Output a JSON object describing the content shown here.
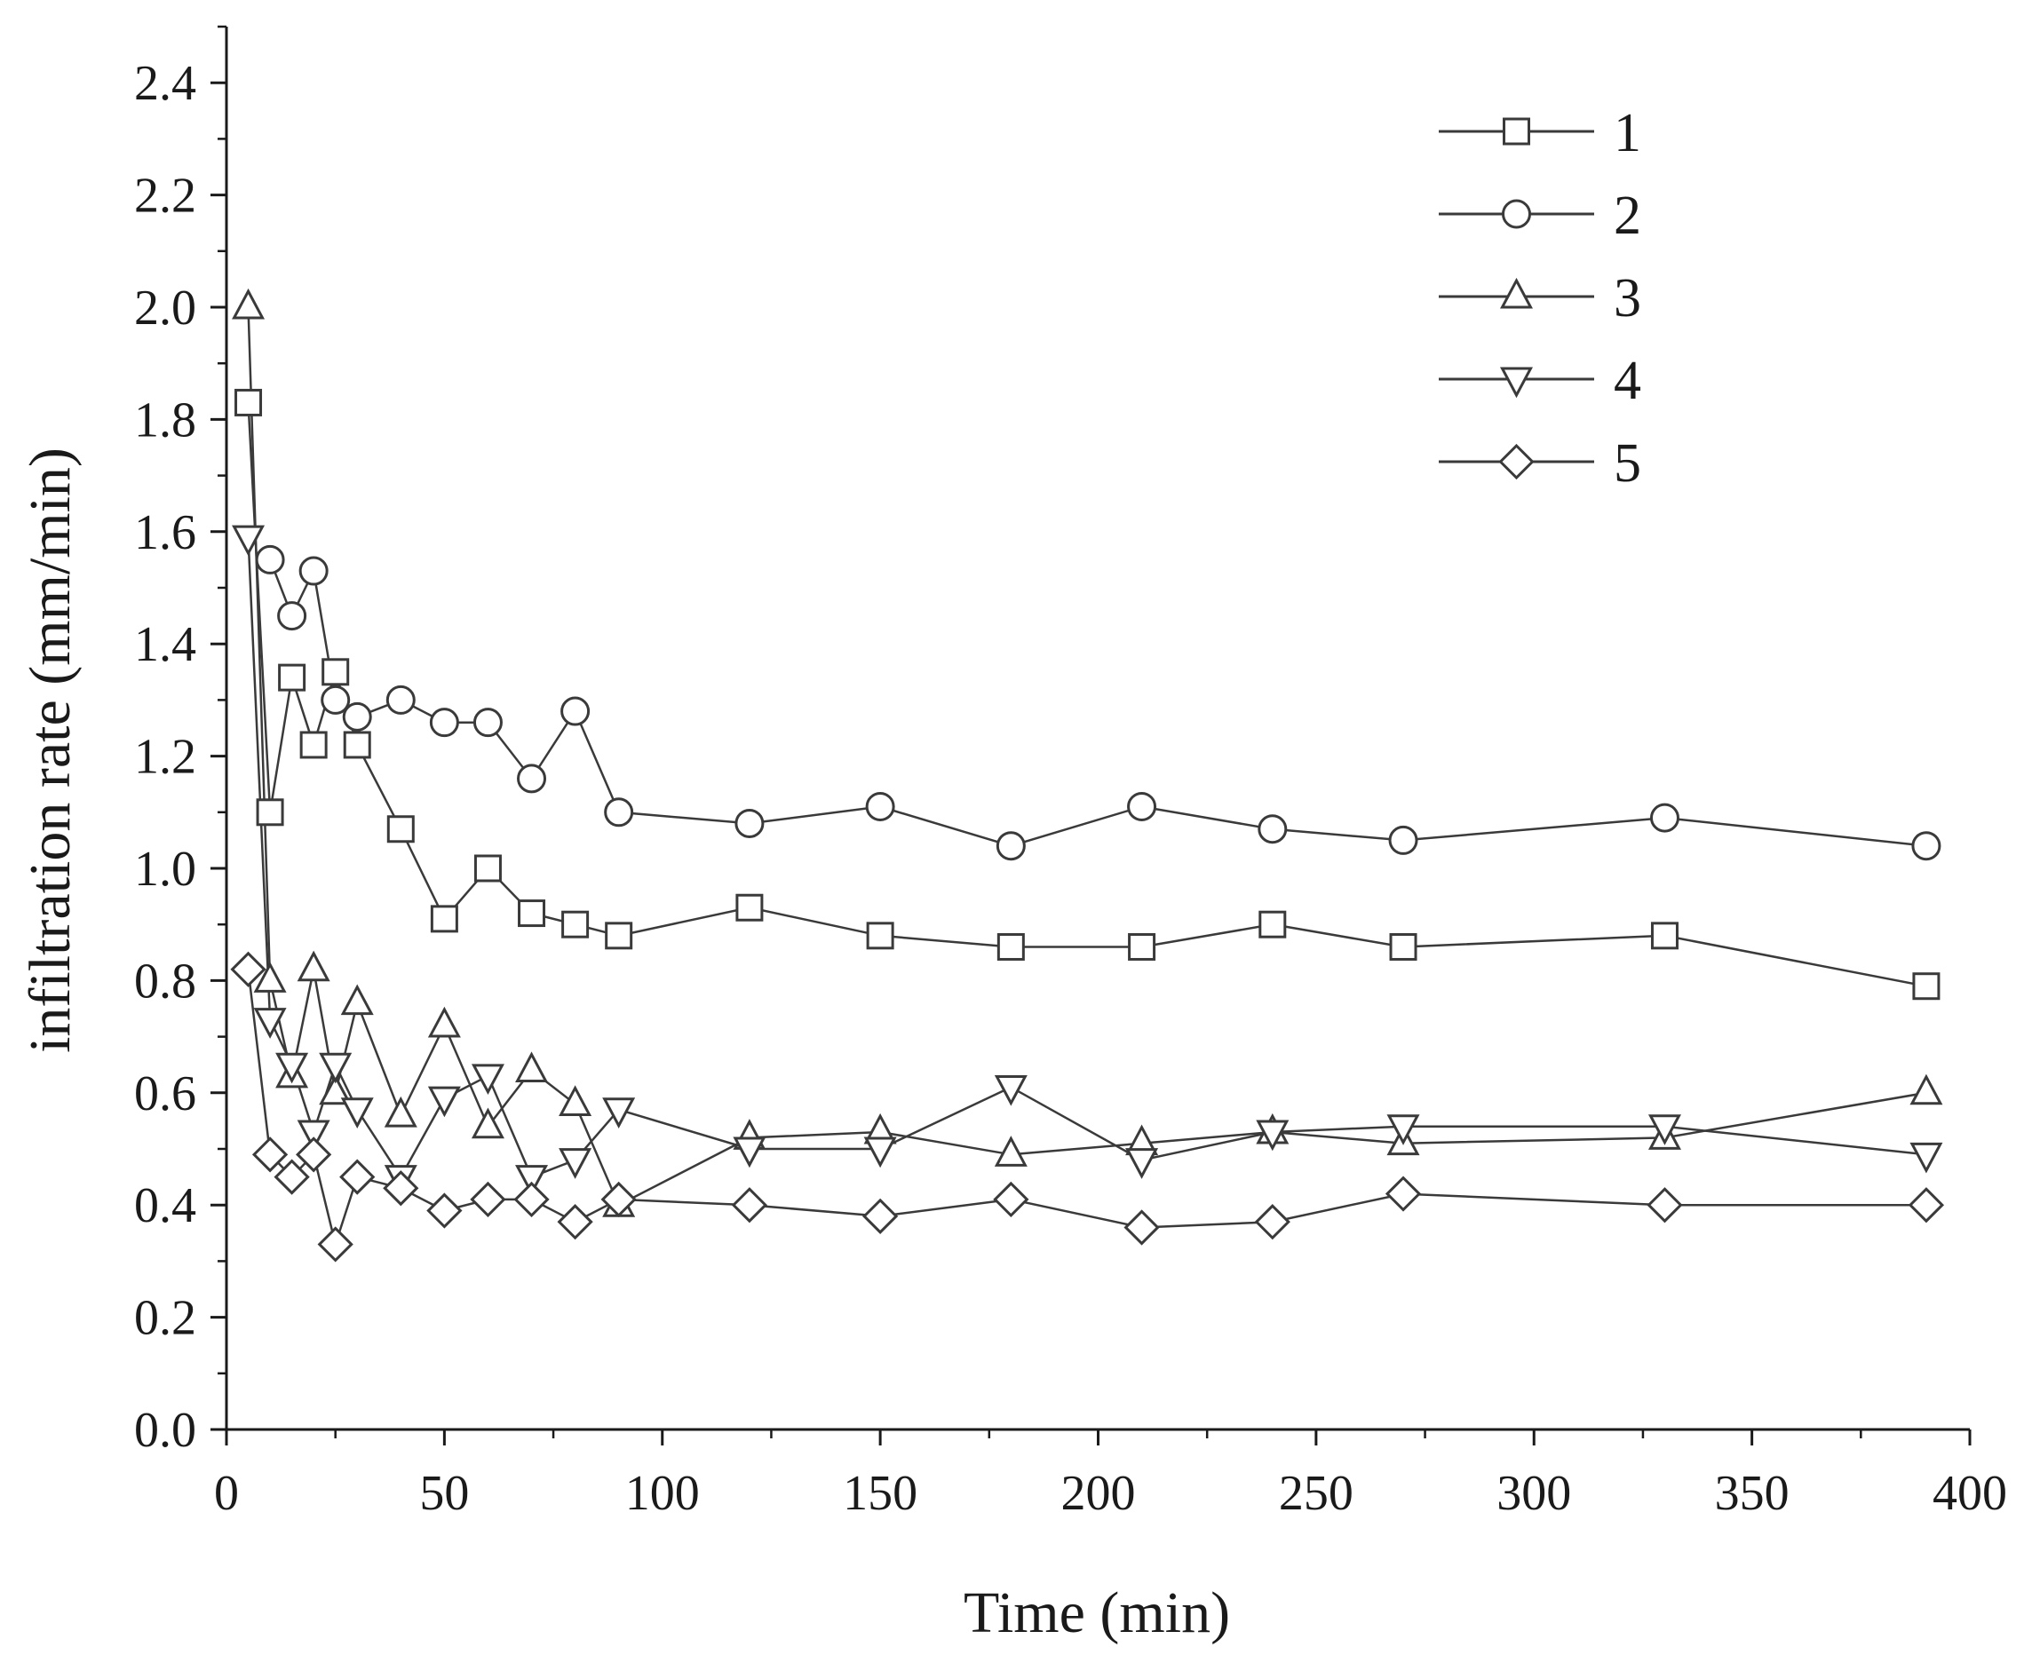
{
  "chart_data": {
    "type": "line",
    "title": "",
    "xlabel": "Time (min)",
    "ylabel": "infiltration rate (mm/min)",
    "xlim": [
      0,
      400
    ],
    "ylim": [
      0,
      2.5
    ],
    "xticks": [
      0,
      50,
      100,
      150,
      200,
      250,
      300,
      350,
      400
    ],
    "xtick_labels": [
      "0",
      "50",
      "100",
      "150",
      "200",
      "250",
      "300",
      "350",
      "400"
    ],
    "yticks": [
      0.0,
      0.2,
      0.4,
      0.6,
      0.8,
      1.0,
      1.2,
      1.4,
      1.6,
      1.8,
      2.0,
      2.2,
      2.4
    ],
    "ytick_labels": [
      "0.0",
      "0.2",
      "0.4",
      "0.6",
      "0.8",
      "1.0",
      "1.2",
      "1.4",
      "1.6",
      "1.8",
      "2.0",
      "2.2",
      "2.4"
    ],
    "grid": false,
    "legend_position": "top-right",
    "line_color": "#3a3a3a",
    "series": [
      {
        "name": "1",
        "marker": "square",
        "x": [
          5,
          10,
          15,
          20,
          25,
          30,
          40,
          50,
          60,
          70,
          80,
          90,
          120,
          150,
          180,
          210,
          240,
          270,
          330,
          390
        ],
        "y": [
          1.83,
          1.1,
          1.34,
          1.22,
          1.35,
          1.22,
          1.07,
          0.91,
          1.0,
          0.92,
          0.9,
          0.88,
          0.93,
          0.88,
          0.86,
          0.86,
          0.9,
          0.86,
          0.88,
          0.79
        ]
      },
      {
        "name": "2",
        "marker": "circle",
        "x": [
          10,
          15,
          20,
          25,
          30,
          40,
          50,
          60,
          70,
          80,
          90,
          120,
          150,
          180,
          210,
          240,
          270,
          330,
          390
        ],
        "y": [
          1.55,
          1.45,
          1.53,
          1.3,
          1.27,
          1.3,
          1.26,
          1.26,
          1.16,
          1.28,
          1.1,
          1.08,
          1.11,
          1.04,
          1.11,
          1.07,
          1.05,
          1.09,
          1.04
        ]
      },
      {
        "name": "3",
        "marker": "triangle-up",
        "x": [
          5,
          10,
          15,
          20,
          25,
          30,
          40,
          50,
          60,
          70,
          80,
          90,
          120,
          150,
          180,
          210,
          240,
          270,
          330,
          390
        ],
        "y": [
          2.0,
          0.8,
          0.63,
          0.82,
          0.6,
          0.76,
          0.56,
          0.72,
          0.54,
          0.64,
          0.58,
          0.4,
          0.52,
          0.53,
          0.49,
          0.51,
          0.53,
          0.51,
          0.52,
          0.6
        ]
      },
      {
        "name": "4",
        "marker": "triangle-down",
        "x": [
          5,
          10,
          15,
          20,
          25,
          30,
          40,
          50,
          60,
          70,
          80,
          90,
          120,
          150,
          180,
          210,
          240,
          270,
          330,
          390
        ],
        "y": [
          1.59,
          0.73,
          0.65,
          0.53,
          0.65,
          0.57,
          0.45,
          0.59,
          0.63,
          0.45,
          0.48,
          0.57,
          0.5,
          0.5,
          0.61,
          0.48,
          0.53,
          0.54,
          0.54,
          0.49
        ]
      },
      {
        "name": "5",
        "marker": "diamond",
        "x": [
          5,
          10,
          15,
          20,
          25,
          30,
          40,
          50,
          60,
          70,
          80,
          90,
          120,
          150,
          180,
          210,
          240,
          270,
          330,
          390
        ],
        "y": [
          0.82,
          0.49,
          0.45,
          0.49,
          0.33,
          0.45,
          0.43,
          0.39,
          0.41,
          0.41,
          0.37,
          0.41,
          0.4,
          0.38,
          0.41,
          0.36,
          0.37,
          0.42,
          0.4,
          0.4
        ]
      }
    ]
  }
}
